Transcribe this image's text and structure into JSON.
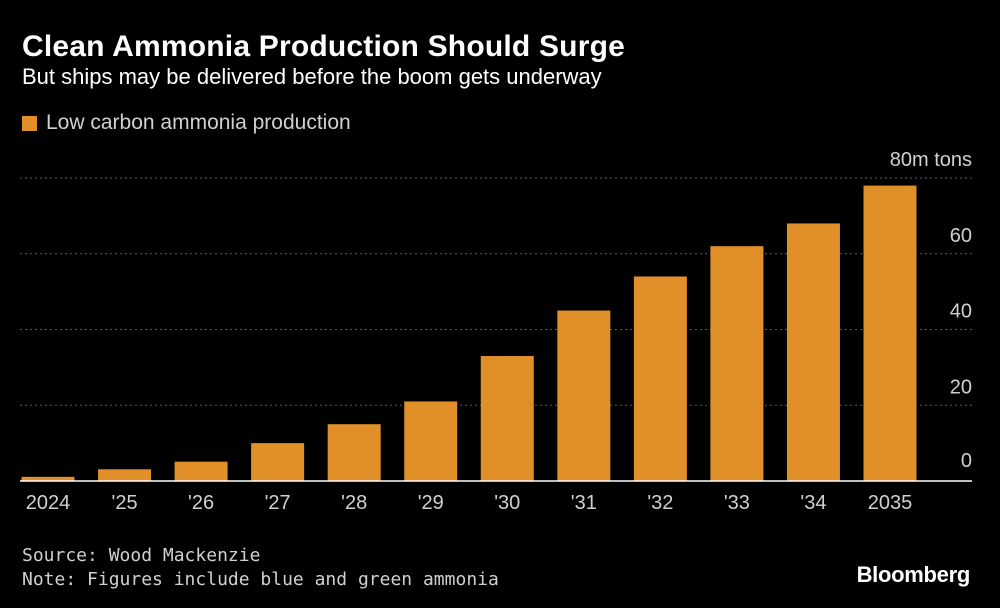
{
  "header": {
    "title": "Clean Ammonia Production Should Surge",
    "subtitle": "But ships may be delivered before the boom gets underway"
  },
  "legend": {
    "label": "Low carbon ammonia production"
  },
  "footer": {
    "source": "Source: Wood Mackenzie",
    "note": "Note: Figures include blue and green ammonia",
    "brand": "Bloomberg"
  },
  "colors": {
    "background": "#000000",
    "bar": "#e08f29",
    "grid": "#5c5c5c",
    "tick_text": "#d0d0d0",
    "axis": "#ffffff"
  },
  "chart_data": {
    "type": "bar",
    "categories": [
      "2024",
      "'25",
      "'26",
      "'27",
      "'28",
      "'29",
      "'30",
      "'31",
      "'32",
      "'33",
      "'34",
      "2035"
    ],
    "series": [
      {
        "name": "Low carbon ammonia production",
        "values": [
          1.1,
          3.1,
          5.1,
          10,
          15,
          21,
          33,
          45,
          54,
          62,
          68,
          78
        ]
      }
    ],
    "ylim": [
      0,
      80
    ],
    "yticks": [
      0,
      20,
      40,
      60,
      80
    ],
    "ytick_labels": [
      "0",
      "20",
      "40",
      "60",
      "80m tons"
    ],
    "grid": true,
    "y_axis_position": "right",
    "legend_position": "top-left"
  }
}
